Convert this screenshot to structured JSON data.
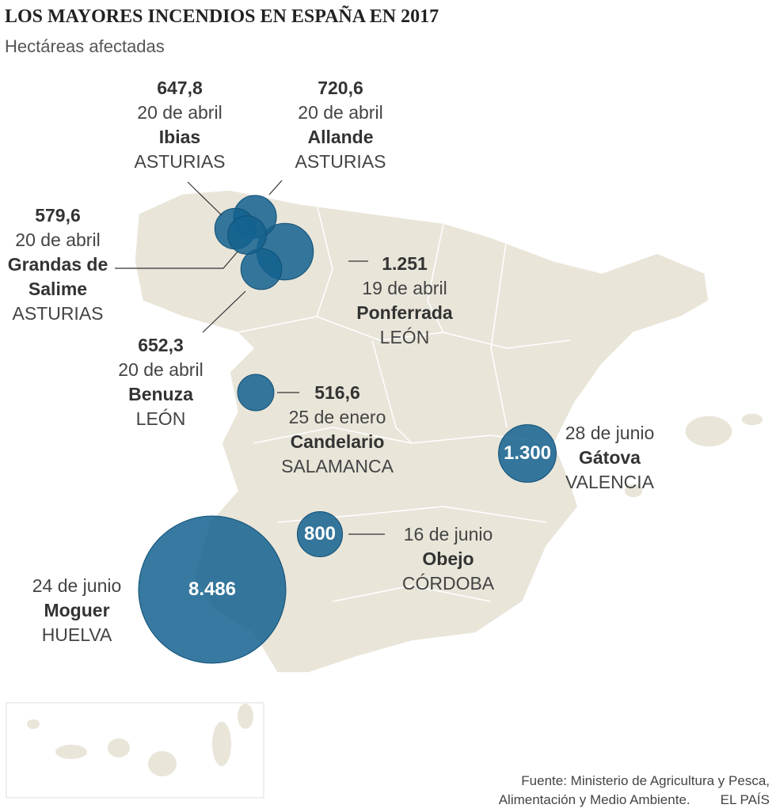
{
  "header": {
    "title": "LOS MAYORES INCENDIOS EN ESPAÑA EN 2017",
    "subtitle": "Hectáreas afectadas"
  },
  "fires": [
    {
      "hectares": 647.8,
      "hectares_label": "647,8",
      "date": "20 de abril",
      "place": "Ibias",
      "region": "ASTURIAS"
    },
    {
      "hectares": 720.6,
      "hectares_label": "720,6",
      "date": "20 de abril",
      "place": "Allande",
      "region": "ASTURIAS"
    },
    {
      "hectares": 579.6,
      "hectares_label": "579,6",
      "date": "20 de abril",
      "place": "Grandas de Salime",
      "region": "ASTURIAS"
    },
    {
      "hectares": 1251,
      "hectares_label": "1.251",
      "date": "19 de abril",
      "place": "Ponferrada",
      "region": "LEÓN"
    },
    {
      "hectares": 652.3,
      "hectares_label": "652,3",
      "date": "20 de abril",
      "place": "Benuza",
      "region": "LEÓN"
    },
    {
      "hectares": 516.6,
      "hectares_label": "516,6",
      "date": "25 de enero",
      "place": "Candelario",
      "region": "SALAMANCA"
    },
    {
      "hectares": 1300,
      "hectares_label": "1.300",
      "date": "28 de junio",
      "place": "Gátova",
      "region": "VALENCIA"
    },
    {
      "hectares": 800,
      "hectares_label": "800",
      "date": "16 de  junio",
      "place": "Obejo",
      "region": "CÓRDOBA"
    },
    {
      "hectares": 8486,
      "hectares_label": "8.486",
      "date": "24 de junio",
      "place": "Moguer",
      "region": "HUELVA"
    }
  ],
  "footer": {
    "source": [
      "Fuente: Ministerio de Agricultura y Pesca,",
      "Alimentación y Medio Ambiente."
    ],
    "credit": "EL PAÍS"
  }
}
